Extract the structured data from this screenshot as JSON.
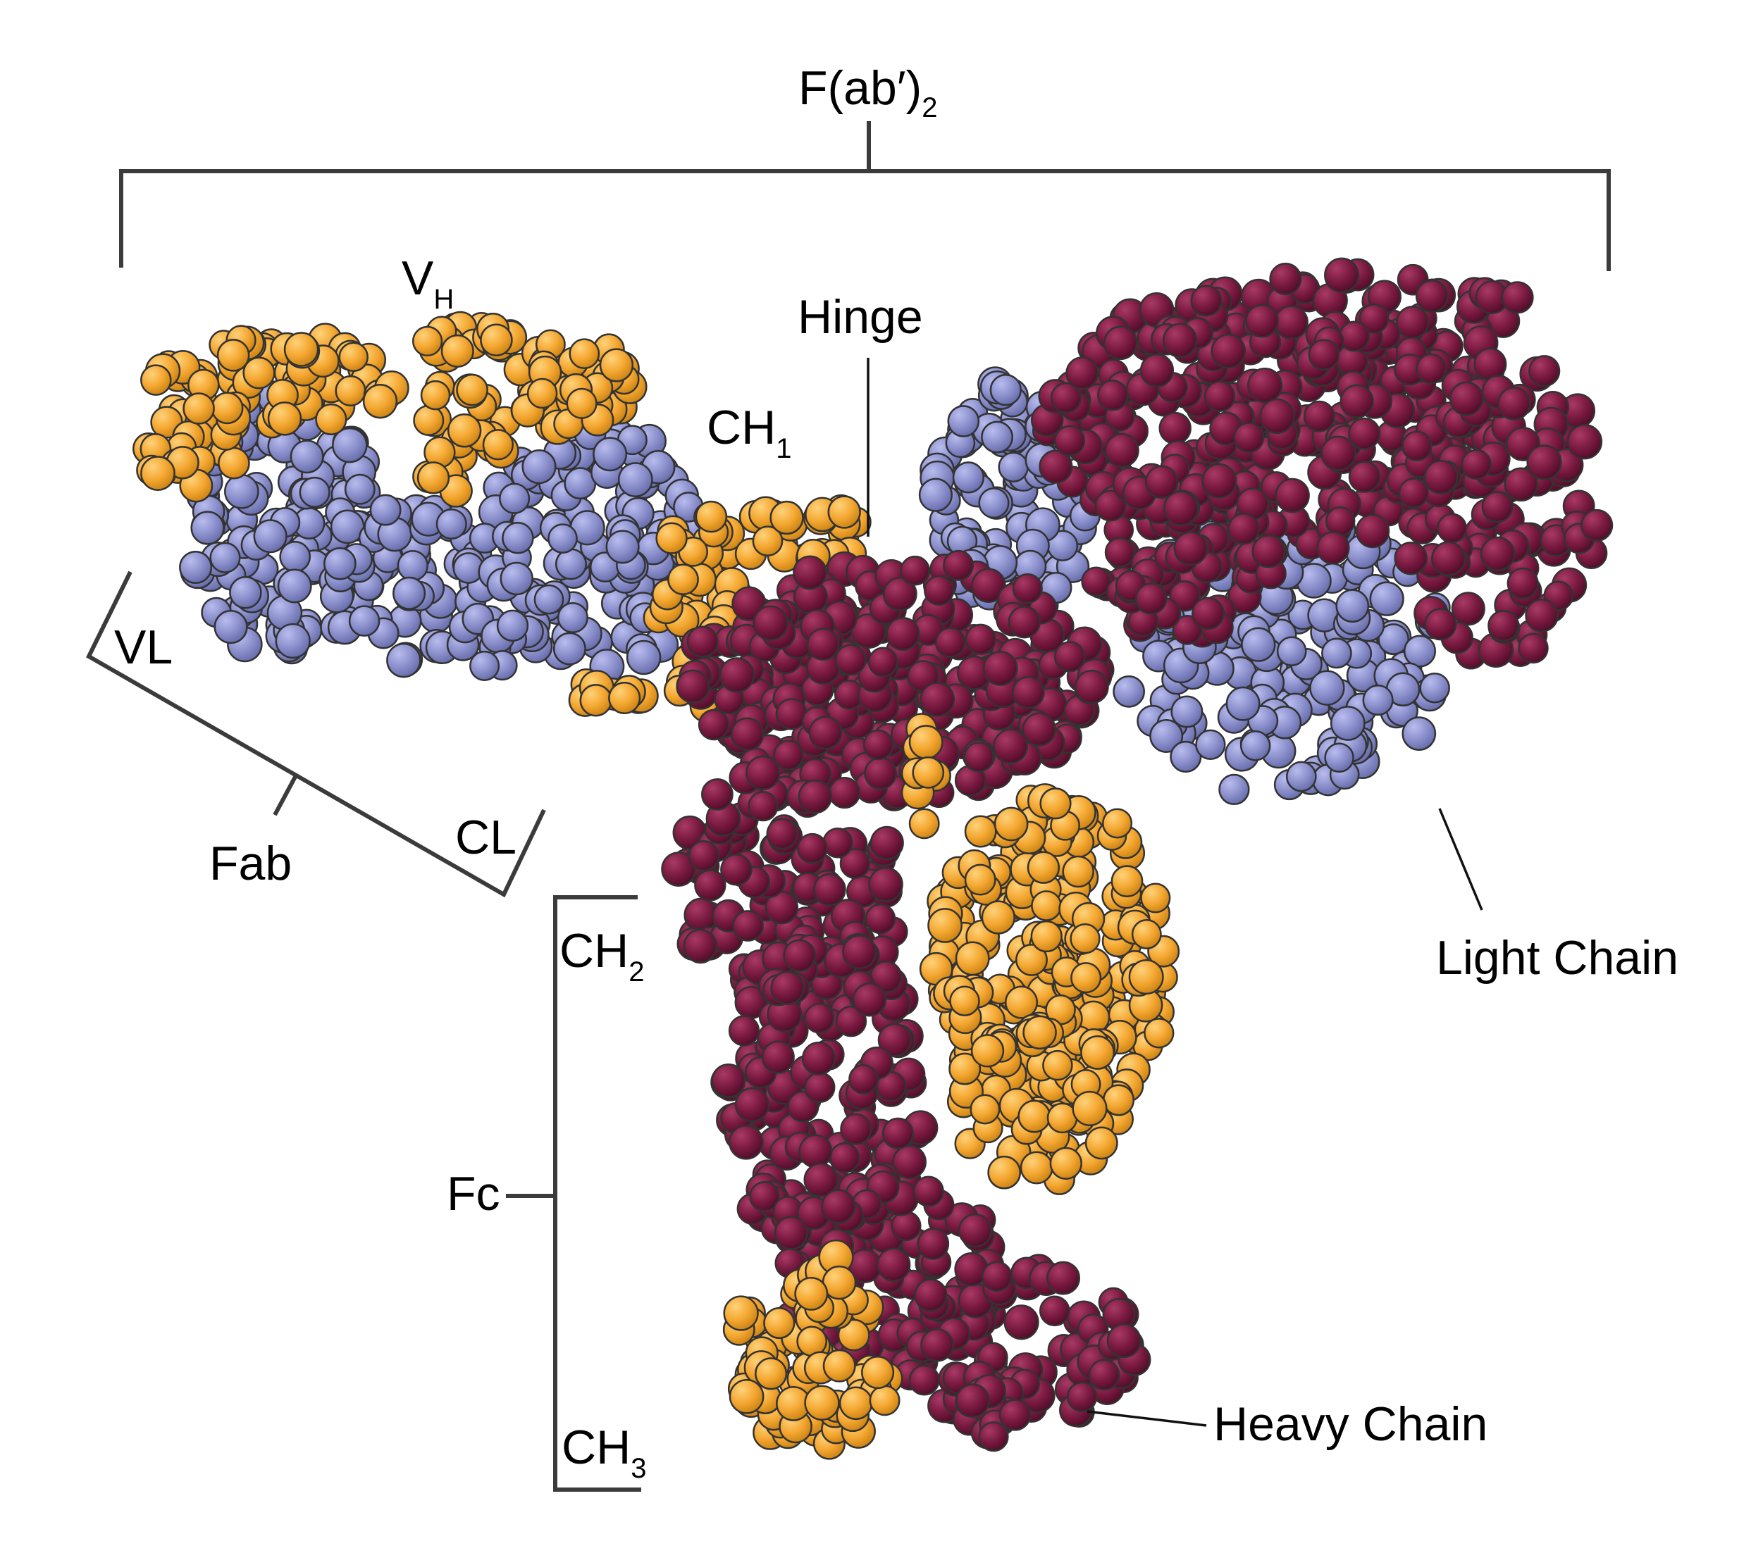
{
  "colors": {
    "heavy_chain_a": "#f4a731",
    "heavy_chain_b": "#7a1a40",
    "light_chain": "#8b90cc",
    "outline": "#333333",
    "bracket": "#3b3b3b"
  },
  "labels": {
    "fab2_main": "F(ab′)",
    "fab2_sub": "2",
    "vh_main": "V",
    "vh_sub": "H",
    "hinge": "Hinge",
    "ch1_main": "CH",
    "ch1_sub": "1",
    "vl": "VL",
    "fab": "Fab",
    "cl": "CL",
    "ch2_main": "CH",
    "ch2_sub": "2",
    "fc": "Fc",
    "ch3_main": "CH",
    "ch3_sub": "3",
    "light_chain": "Light Chain",
    "heavy_chain": "Heavy Chain"
  },
  "icons": {
    "residue": "sphere-icon"
  }
}
